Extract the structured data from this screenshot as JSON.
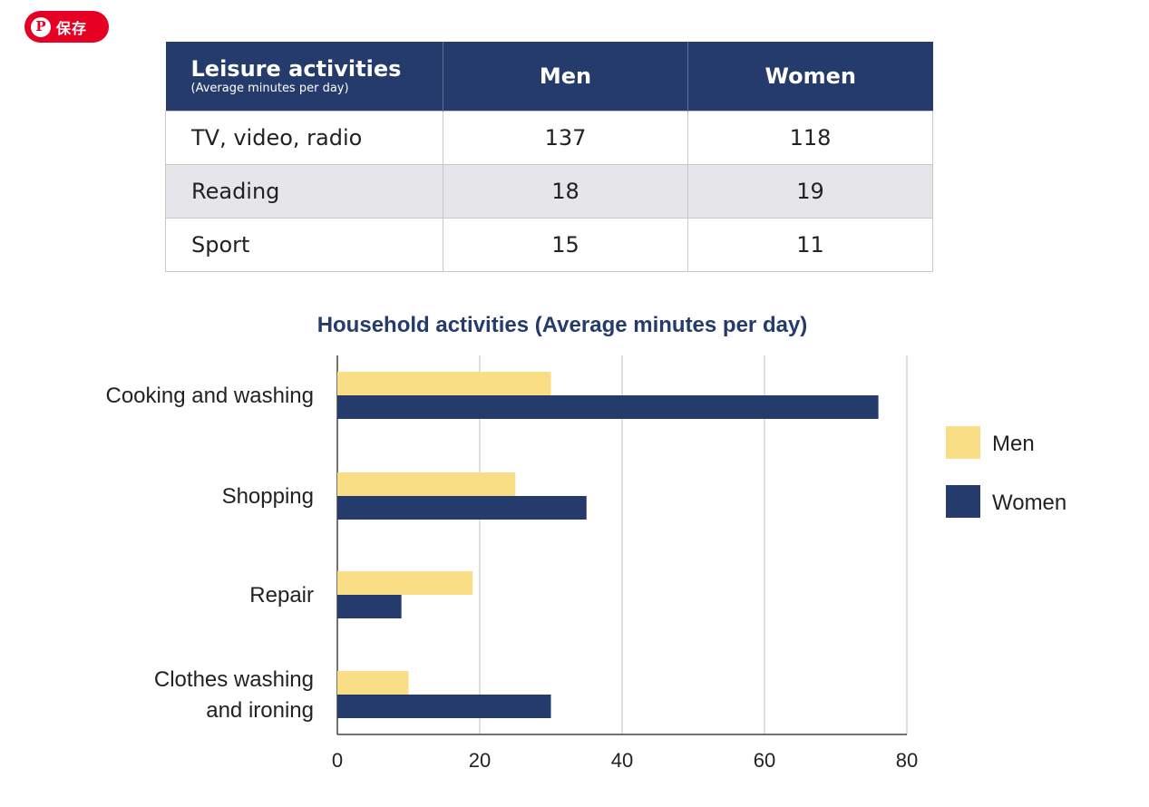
{
  "save_button": {
    "label": "保存",
    "icon": "pinterest-icon",
    "color": "#e60023"
  },
  "table": {
    "header": {
      "activity": "Leisure activities",
      "activity_sub": "(Average minutes per day)",
      "men": "Men",
      "women": "Women"
    },
    "rows": [
      {
        "activity": "TV, video, radio",
        "men": "137",
        "women": "118"
      },
      {
        "activity": "Reading",
        "men": "18",
        "women": "19"
      },
      {
        "activity": "Sport",
        "men": "15",
        "women": "11"
      }
    ],
    "header_color": "#243b6b"
  },
  "chart_data": {
    "type": "bar",
    "orientation": "horizontal",
    "title": "Household activities (Average minutes per day)",
    "categories": [
      "Cooking and washing",
      "Shopping",
      "Repair",
      "Clothes washing and ironing"
    ],
    "series": [
      {
        "name": "Men",
        "color": "#f9de85",
        "values": [
          30,
          25,
          19,
          10
        ]
      },
      {
        "name": "Women",
        "color": "#243b6b",
        "values": [
          76,
          35,
          9,
          30
        ]
      }
    ],
    "xlim": [
      0,
      80
    ],
    "xticks": [
      0,
      20,
      40,
      60,
      80
    ],
    "xlabel": "",
    "ylabel": "",
    "grid": "vertical",
    "legend": "right"
  }
}
